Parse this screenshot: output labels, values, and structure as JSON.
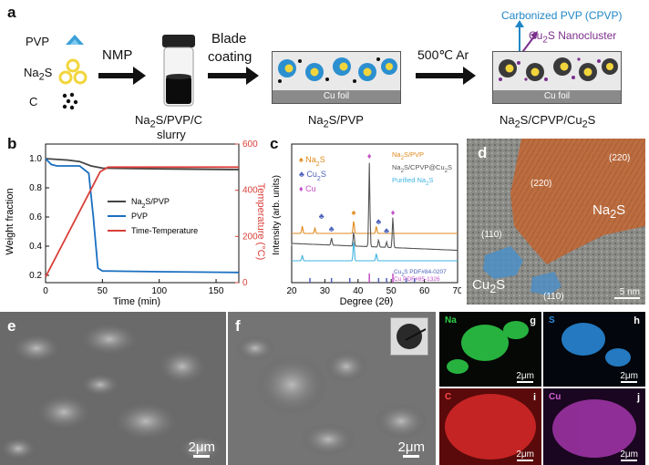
{
  "panel_labels": {
    "a": "a",
    "b": "b",
    "c": "c",
    "d": "d",
    "e": "e",
    "f": "f",
    "g": "g",
    "h": "h",
    "i": "i",
    "j": "j"
  },
  "schematic": {
    "legend": [
      {
        "label": "PVP",
        "color": "#3aa0d8"
      },
      {
        "label": "Na2S",
        "color": "#f2d53c"
      },
      {
        "label": "C",
        "color": "#111111"
      }
    ],
    "step1": "NMP",
    "vial_caption": "Na2S/PVP/C slurry",
    "step2_line1": "Blade",
    "step2_line2": "coating",
    "foil_label": "Cu foil",
    "film1_caption": "Na2S/PVP",
    "step3": "500℃ Ar",
    "cpvp_label": "Carbonized PVP (CPVP)",
    "cu2s_label": "Cu2S Nanocluster",
    "film2_caption": "Na2S/CPVP/Cu2S",
    "colors": {
      "cpvp": "#1f86c6",
      "cu2s": "#7b2f8c"
    }
  },
  "tga": {
    "ylabel_left": "Weight fraction",
    "ylabel_right": "Temperature (°C)",
    "xlabel": "Time (min)",
    "legend": [
      "Na2S/PVP",
      "PVP",
      "Time-Temperature"
    ],
    "colors": {
      "na2s_pvp": "#444444",
      "pvp": "#1a6fc0",
      "temp": "#d9403a"
    }
  },
  "xrd": {
    "ylabel": "Intensity (arb. units)",
    "xlabel": "Degree (2θ)",
    "legend_left": [
      "Na2S",
      "Cu2S",
      "Cu"
    ],
    "legend_right": [
      "Na2S/PVP",
      "Na2S/CPVP@Cu2S",
      "Purified Na2S"
    ],
    "pdf_refs": [
      "Cu2S PDF#84-0207",
      "Cu PDF#85-1326"
    ],
    "colors": {
      "na2s": "#e08a1c",
      "cu2s": "#4a5fb8",
      "cu": "#c44fc8",
      "purified": "#3fb4e0",
      "cpvp": "#555555",
      "ref_cu2s": "#4a5fb8",
      "ref_cu": "#c44fc8"
    }
  },
  "tem": {
    "spacing_top": "(220)",
    "spacing_mid": "(220)",
    "na2s_label": "Na2S",
    "spacing_110a": "(110)",
    "spacing_110b": "(110)",
    "cu2s_label": "Cu2S",
    "scale": "5 nm"
  },
  "sem": {
    "scale_e": "2μm",
    "scale_f": "2μm"
  },
  "maps": [
    {
      "element": "Na",
      "letter": "g",
      "scale": "2μm",
      "color": "#2ed04a"
    },
    {
      "element": "S",
      "letter": "h",
      "scale": "2μm",
      "color": "#2a8ee0"
    },
    {
      "element": "C",
      "letter": "i",
      "scale": "2μm",
      "color": "#e02a2a"
    },
    {
      "element": "Cu",
      "letter": "j",
      "scale": "2μm",
      "color": "#c040c8"
    }
  ],
  "chart_data": [
    {
      "type": "line",
      "panel": "b",
      "xlabel": "Time (min)",
      "ylabel": "Weight fraction",
      "y2label": "Temperature (°C)",
      "xlim": [
        0,
        170
      ],
      "ylim": [
        0.15,
        1.1
      ],
      "y2lim": [
        0,
        600
      ],
      "xticks": [
        0,
        50,
        100,
        150
      ],
      "yticks": [
        0.2,
        0.4,
        0.6,
        0.8,
        1.0
      ],
      "y2ticks": [
        0,
        200,
        400,
        600
      ],
      "series": [
        {
          "name": "Na2S/PVP",
          "axis": "left",
          "x": [
            0,
            20,
            30,
            40,
            50,
            100,
            170
          ],
          "y": [
            1.0,
            0.99,
            0.98,
            0.95,
            0.935,
            0.93,
            0.925
          ]
        },
        {
          "name": "PVP",
          "axis": "left",
          "x": [
            0,
            5,
            10,
            30,
            38,
            42,
            46,
            50,
            100,
            170
          ],
          "y": [
            1.0,
            0.96,
            0.95,
            0.95,
            0.9,
            0.6,
            0.25,
            0.23,
            0.225,
            0.22
          ]
        },
        {
          "name": "Time-Temperature",
          "axis": "right",
          "x": [
            0,
            48,
            55,
            170
          ],
          "y": [
            25,
            480,
            500,
            500
          ]
        }
      ]
    },
    {
      "type": "line",
      "panel": "c",
      "xlabel": "Degree (2θ)",
      "ylabel": "Intensity (arb. units)",
      "xlim": [
        20,
        70
      ],
      "xticks": [
        20,
        30,
        40,
        50,
        60,
        70
      ],
      "series": [
        {
          "name": "Na2S/PVP",
          "peaks": [
            23.2,
            27,
            38.7,
            45.5
          ]
        },
        {
          "name": "Na2S/CPVP@Cu2S",
          "peaks": [
            32,
            38.7,
            43.4,
            46.2,
            48.6,
            50.5
          ]
        },
        {
          "name": "Purified Na2S",
          "peaks": [
            23.2,
            38.7,
            45.5
          ]
        }
      ],
      "reference_ticks": {
        "Cu2S PDF#84-0207": [
          25.5,
          32,
          37.5,
          46.2,
          48.6,
          54.5,
          57
        ],
        "Cu PDF#85-1326": [
          43.4,
          50.5
        ]
      }
    }
  ]
}
